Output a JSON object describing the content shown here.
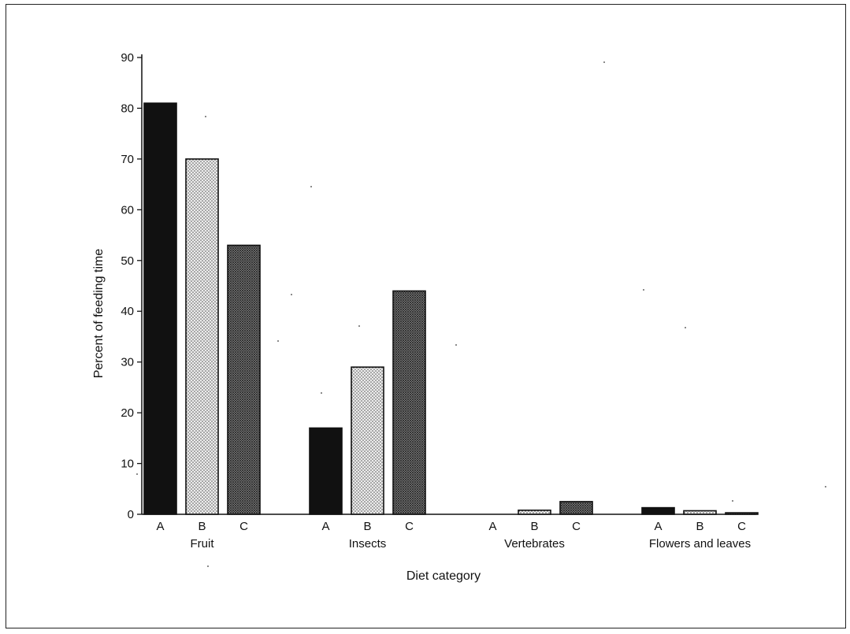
{
  "chart_data": {
    "type": "bar",
    "title": "",
    "xlabel": "Diet category",
    "ylabel": "Percent of feeding time",
    "ylim": [
      0,
      90
    ],
    "yticks": [
      0,
      10,
      20,
      30,
      40,
      50,
      60,
      70,
      80,
      90
    ],
    "grid": false,
    "legend": "none",
    "categories": [
      "Fruit",
      "Insects",
      "Vertebrates",
      "Flowers and leaves"
    ],
    "series": [
      {
        "name": "A",
        "color": "#111111",
        "pattern": "solid",
        "values": [
          81,
          17,
          0,
          1.3
        ]
      },
      {
        "name": "B",
        "color": "#d9d9d9",
        "pattern": "light-dots",
        "values": [
          70,
          29,
          0.8,
          0.7
        ]
      },
      {
        "name": "C",
        "color": "#8c8c8c",
        "pattern": "dense-cross",
        "values": [
          53,
          44,
          2.5,
          0.3
        ]
      }
    ]
  }
}
